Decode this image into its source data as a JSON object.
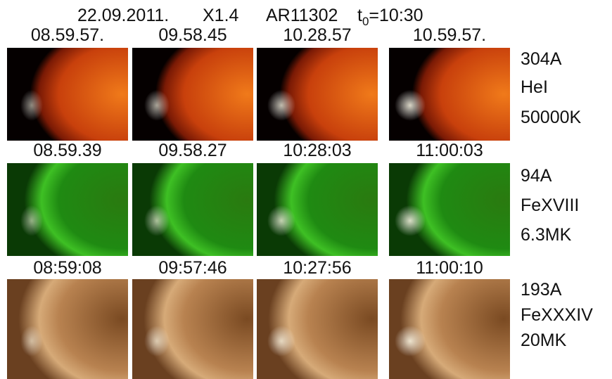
{
  "title": {
    "date": "22.09.2011.",
    "flare_class": "X1.4",
    "region": "AR11302",
    "t_symbol": "t",
    "t_subscript": "0",
    "t_value": "=10:30"
  },
  "rows": [
    {
      "times": [
        "08.59.57.",
        "09.58.45",
        "10.28.57",
        "10.59.57."
      ],
      "labels": [
        "304A",
        "HeI",
        "50000K"
      ],
      "color": "#d8262e"
    },
    {
      "times": [
        "08.59.39",
        "09.58.27",
        "10:28:03",
        "11:00:03"
      ],
      "labels": [
        "94A",
        "FeXVIII",
        "6.3MK"
      ],
      "color": "#2ea94e"
    },
    {
      "times": [
        "08:59:08",
        "09:57:46",
        "10:27:56",
        "11:00:10"
      ],
      "labels": [
        "193A",
        "FeXXXIV",
        "20MK"
      ],
      "color": "#b27a55"
    }
  ]
}
